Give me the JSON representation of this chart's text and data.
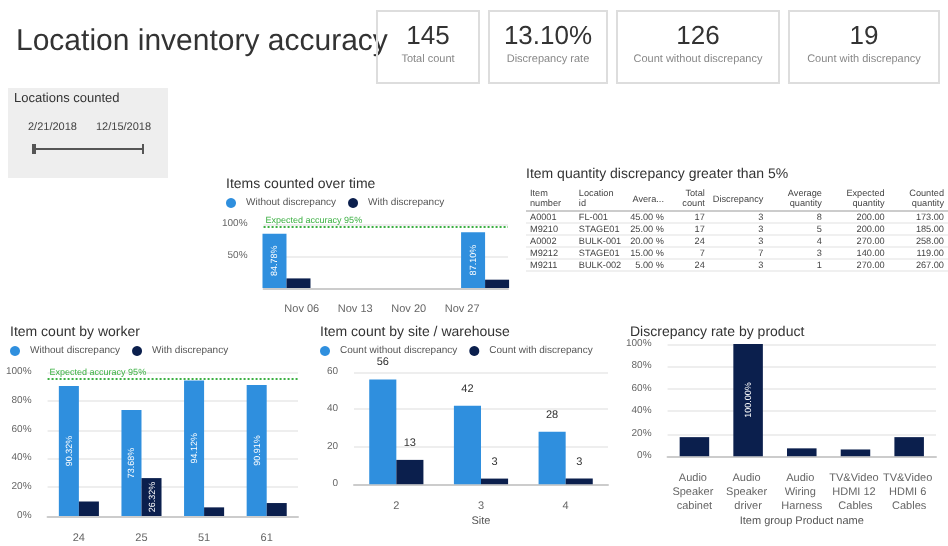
{
  "chart_data": [
    {
      "type": "other",
      "title": "Location inventory accuracy",
      "categories": [
        "Total count",
        "Discrepancy rate",
        "Count without discrepancy",
        "Count with discrepancy"
      ],
      "value_labels": [
        "145",
        "13.10%",
        "126",
        "19"
      ]
    },
    {
      "type": "other",
      "title": "Locations counted",
      "annotations": [
        "2/21/2018",
        "12/15/2018"
      ]
    },
    {
      "type": "bar",
      "title": "Items counted over time",
      "x": [
        "2018-11-04",
        "2018-11-30"
      ],
      "xlim": [
        "2018-11-01",
        "2018-12-03"
      ],
      "xticks": [
        {
          "value": "2018-11-06",
          "label": "Nov 06"
        },
        {
          "value": "2018-11-13",
          "label": "Nov 13"
        },
        {
          "value": "2018-11-20",
          "label": "Nov 20"
        },
        {
          "value": "2018-11-27",
          "label": "Nov 27"
        }
      ],
      "ylim": [
        0,
        100
      ],
      "yticks": [
        {
          "value": 50,
          "label": "50%"
        },
        {
          "value": 100,
          "label": "100%"
        }
      ],
      "grid": "y",
      "legend": "top left",
      "series": [
        {
          "name": "Without discrepancy",
          "color": "#2f8fde",
          "values": [
            84.78,
            87.1
          ],
          "value_labels": [
            "84.78%",
            "87.10%"
          ]
        },
        {
          "name": "With discrepancy",
          "color": "#0b1f4d",
          "values": [
            15,
            13
          ]
        }
      ],
      "ref_lines": [
        {
          "axis": "y",
          "value": 95,
          "label": "Expected accuracy 95%",
          "color": "#3cb043",
          "line_style": "dotted"
        }
      ]
    },
    {
      "type": "other",
      "title": "Item quantity discrepancy greater than 5%",
      "categories": [
        "Item number",
        "Location id",
        "Avera...",
        "Total count",
        "Discrepancy",
        "Average quantity",
        "Expected quantity",
        "Counted quantity"
      ],
      "cell_labels": [
        [
          "A0001",
          "FL-001",
          "45.00 %",
          "17",
          "3",
          "8",
          "200.00",
          "173.00"
        ],
        [
          "M9210",
          "STAGE01",
          "25.00 %",
          "17",
          "3",
          "5",
          "200.00",
          "185.00"
        ],
        [
          "A0002",
          "BULK-001",
          "20.00 %",
          "24",
          "3",
          "4",
          "270.00",
          "258.00"
        ],
        [
          "M9212",
          "STAGE01",
          "15.00 %",
          "7",
          "7",
          "3",
          "140.00",
          "119.00"
        ],
        [
          "M9211",
          "BULK-002",
          "5.00 %",
          "24",
          "3",
          "1",
          "270.00",
          "267.00"
        ]
      ]
    },
    {
      "type": "bar",
      "title": "Item count by worker",
      "categories": [
        "24",
        "25",
        "51",
        "61"
      ],
      "ylim": [
        0,
        100
      ],
      "yticks": [
        {
          "value": 0,
          "label": "0%"
        },
        {
          "value": 20,
          "label": "20%"
        },
        {
          "value": 40,
          "label": "40%"
        },
        {
          "value": 60,
          "label": "60%"
        },
        {
          "value": 80,
          "label": "80%"
        },
        {
          "value": 100,
          "label": "100%"
        }
      ],
      "grid": "y",
      "legend": "top left",
      "series": [
        {
          "name": "Without discrepancy",
          "color": "#2f8fde",
          "values": [
            90.32,
            73.68,
            94.12,
            90.91
          ],
          "value_labels": [
            "90.32%",
            "73.68%",
            "94.12%",
            "90.91%"
          ]
        },
        {
          "name": "With discrepancy",
          "color": "#0b1f4d",
          "values": [
            10,
            26.32,
            6,
            9
          ],
          "value_labels": [
            null,
            "26.32%",
            null,
            null
          ]
        }
      ],
      "ref_lines": [
        {
          "axis": "y",
          "value": 95,
          "label": "Expected accuracy 95%",
          "color": "#3cb043",
          "line_style": "dotted"
        }
      ]
    },
    {
      "type": "bar",
      "title": "Item count by site / warehouse",
      "categories": [
        "2",
        "3",
        "4"
      ],
      "xlabel": "Site",
      "ylim": [
        0,
        60
      ],
      "yticks": [
        0,
        20,
        40,
        60
      ],
      "grid": "y",
      "legend": "top left",
      "data_labels": true,
      "series": [
        {
          "name": "Count without discrepancy",
          "color": "#2f8fde",
          "values": [
            56,
            42,
            28
          ]
        },
        {
          "name": "Count with discrepancy",
          "color": "#0b1f4d",
          "values": [
            13,
            3,
            3
          ]
        }
      ]
    },
    {
      "type": "bar",
      "title": "Discrepancy rate by product",
      "categories": [
        "Audio Speaker cabinet",
        "Audio Speaker driver",
        "Audio Wiring Harness",
        "TV&Video HDMI 12 Cables",
        "TV&Video HDMI 6 Cables"
      ],
      "xlabel": "Item group Product name",
      "ylim": [
        0,
        100
      ],
      "yticks": [
        {
          "value": 0,
          "label": "0%"
        },
        {
          "value": 20,
          "label": "20%"
        },
        {
          "value": 40,
          "label": "40%"
        },
        {
          "value": 60,
          "label": "60%"
        },
        {
          "value": 80,
          "label": "80%"
        },
        {
          "value": 100,
          "label": "100%"
        }
      ],
      "grid": "y",
      "color": "#0b1f4d",
      "values": [
        17,
        100,
        7,
        6,
        17
      ],
      "value_labels": [
        null,
        "100.00%",
        null,
        null,
        null
      ]
    }
  ]
}
